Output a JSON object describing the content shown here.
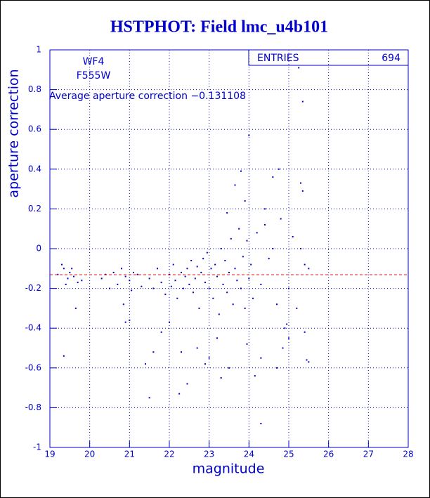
{
  "chart_data": {
    "type": "scatter",
    "title": "HSTPHOT: Field lmc_u4b101",
    "x_label": "magnitude",
    "y_label": "aperture correction",
    "annotations": [
      "WF4",
      "F555W",
      "Average aperture correction −0.131108"
    ],
    "stats": {
      "label": "ENTRIES",
      "value": 694
    },
    "average_line": -0.131108,
    "color": "#0000cc",
    "line_color": "#dd0000",
    "grid": true,
    "xlim": [
      19,
      28
    ],
    "xticks": [
      19,
      20,
      21,
      22,
      23,
      24,
      25,
      26,
      27,
      28
    ],
    "ylim": [
      -1,
      1
    ],
    "yticks": [
      -1,
      -0.8,
      -0.6,
      -0.4,
      -0.2,
      0,
      0.2,
      0.4,
      0.6,
      0.8,
      1
    ],
    "x": [
      19.2,
      19.3,
      19.35,
      19.4,
      19.45,
      19.5,
      19.6,
      19.65,
      19.7,
      19.8,
      19.35,
      19.55,
      20.3,
      20.4,
      20.5,
      20.6,
      20.7,
      20.8,
      20.85,
      20.9,
      21.0,
      21.05,
      21.1,
      21.2,
      21.3,
      20.9,
      21.4,
      21.5,
      21.0,
      21.5,
      21.6,
      21.7,
      21.8,
      21.9,
      22.0,
      22.05,
      22.1,
      22.15,
      22.2,
      22.3,
      22.35,
      22.4,
      22.45,
      22.5,
      22.55,
      22.6,
      22.65,
      22.7,
      22.75,
      22.8,
      22.85,
      22.9,
      22.95,
      23.0,
      23.05,
      23.1,
      23.15,
      23.2,
      23.25,
      23.3,
      23.35,
      23.4,
      23.45,
      23.5,
      23.55,
      23.6,
      23.65,
      23.7,
      23.75,
      23.8,
      23.85,
      23.9,
      23.95,
      24.0,
      24.05,
      24.1,
      24.2,
      24.3,
      24.4,
      24.5,
      24.6,
      24.7,
      24.8,
      24.9,
      25.0,
      25.1,
      25.2,
      25.3,
      25.4,
      25.5,
      23.8,
      24.0,
      23.65,
      23.45,
      23.9,
      24.6,
      24.75,
      25.3,
      25.35,
      25.25,
      25.35,
      24.4,
      25.4,
      25.45,
      25.5,
      24.3,
      24.15,
      24.7,
      23.3,
      23.0,
      22.25,
      22.45,
      22.9,
      23.5,
      22.3,
      21.8,
      22.0,
      24.85,
      25.0,
      24.95,
      22.7,
      23.2,
      21.6,
      23.95,
      24.3
    ],
    "y": [
      -0.13,
      -0.08,
      -0.1,
      -0.18,
      -0.15,
      -0.12,
      -0.14,
      -0.3,
      -0.17,
      -0.16,
      -0.54,
      -0.1,
      -0.15,
      -0.13,
      -0.2,
      -0.12,
      -0.18,
      -0.1,
      -0.28,
      -0.14,
      -0.16,
      -0.21,
      -0.12,
      -0.13,
      -0.19,
      -0.37,
      -0.58,
      -0.75,
      -0.36,
      -0.15,
      -0.2,
      -0.1,
      -0.17,
      -0.23,
      -0.13,
      -0.19,
      -0.08,
      -0.16,
      -0.25,
      -0.12,
      -0.2,
      -0.14,
      -0.1,
      -0.18,
      -0.06,
      -0.22,
      -0.15,
      -0.09,
      -0.3,
      -0.12,
      -0.05,
      -0.17,
      -0.02,
      -0.2,
      -0.1,
      -0.25,
      -0.08,
      -0.14,
      -0.33,
      0.0,
      -0.18,
      -0.06,
      -0.22,
      -0.12,
      0.05,
      -0.28,
      -0.1,
      -0.16,
      0.1,
      -0.2,
      -0.04,
      -0.3,
      0.04,
      -0.15,
      -0.08,
      -0.25,
      0.08,
      -0.18,
      0.12,
      -0.05,
      0.0,
      -0.28,
      0.15,
      -0.4,
      -0.2,
      0.06,
      -0.3,
      0.0,
      -0.08,
      -0.1,
      0.39,
      0.57,
      0.32,
      0.18,
      0.24,
      0.36,
      0.4,
      0.33,
      0.29,
      0.91,
      0.74,
      0.2,
      -0.42,
      -0.56,
      -0.57,
      -0.88,
      -0.64,
      -0.6,
      -0.65,
      -0.55,
      -0.73,
      -0.68,
      -0.58,
      -0.6,
      -0.52,
      -0.42,
      -0.37,
      -0.5,
      -0.45,
      -0.38,
      -0.5,
      -0.45,
      -0.52,
      -0.48,
      -0.55
    ]
  }
}
